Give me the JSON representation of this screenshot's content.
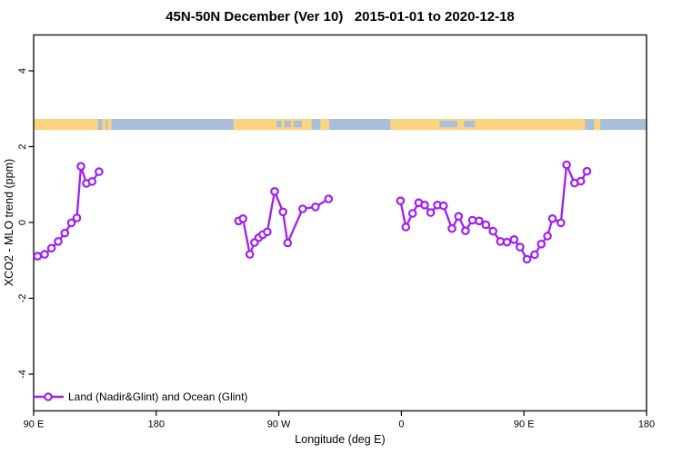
{
  "chart_data": {
    "type": "line",
    "title": "45N-50N December (Ver 10)   2015-01-01 to 2020-12-18",
    "xlabel": "Longitude (deg E)",
    "ylabel": "XCO2 - MLO trend (ppm)",
    "grid": false,
    "x_axis": {
      "note": "longitude axis wraps eastward from 90E across 450 degrees",
      "range": [
        90,
        540
      ],
      "ticks": [
        {
          "lon": 90,
          "label": "90 E"
        },
        {
          "lon": 180,
          "label": "180"
        },
        {
          "lon": 270,
          "label": "90 W"
        },
        {
          "lon": 360,
          "label": "0"
        },
        {
          "lon": 450,
          "label": "90 E"
        },
        {
          "lon": 540,
          "label": "180"
        }
      ]
    },
    "y_axis": {
      "range": [
        -5,
        5
      ],
      "ticks": [
        {
          "value": -4,
          "label": "-4"
        },
        {
          "value": -2,
          "label": "-2"
        },
        {
          "value": 0,
          "label": "0"
        },
        {
          "value": 2,
          "label": "2"
        },
        {
          "value": 4,
          "label": "4"
        }
      ]
    },
    "legend": {
      "position": "bottom-left",
      "entries": [
        {
          "label": "Land (Nadir&Glint) and Ocean (Glint)",
          "color": "#A020F0",
          "marker": "open-circle-on-line"
        }
      ]
    },
    "series": [
      {
        "name": "Land (Nadir&Glint) and Ocean (Glint)",
        "color": "#A020F0",
        "marker": "open-circle",
        "segments": [
          [
            [
              92.9,
              -0.89
            ],
            [
              98.0,
              -0.84
            ],
            [
              103.1,
              -0.68
            ],
            [
              108.0,
              -0.5
            ],
            [
              112.9,
              -0.28
            ],
            [
              117.7,
              -0.01
            ],
            [
              121.7,
              0.12
            ],
            [
              124.7,
              1.48
            ],
            [
              128.7,
              1.03
            ],
            [
              132.9,
              1.08
            ],
            [
              138.0,
              1.34
            ]
          ],
          [
            [
              240.5,
              0.04
            ],
            [
              243.7,
              0.1
            ],
            [
              248.7,
              -0.84
            ],
            [
              252.2,
              -0.53
            ],
            [
              255.3,
              -0.4
            ],
            [
              258.2,
              -0.32
            ],
            [
              261.5,
              -0.25
            ],
            [
              266.9,
              0.82
            ],
            [
              273.1,
              0.28
            ],
            [
              276.5,
              -0.54
            ],
            [
              287.5,
              0.36
            ],
            [
              296.9,
              0.41
            ],
            [
              306.5,
              0.62
            ]
          ],
          [
            [
              359.3,
              0.57
            ],
            [
              363.3,
              -0.12
            ],
            [
              368.2,
              0.24
            ],
            [
              372.7,
              0.52
            ],
            [
              377.1,
              0.46
            ],
            [
              381.5,
              0.26
            ],
            [
              386.5,
              0.46
            ],
            [
              390.9,
              0.44
            ],
            [
              397.1,
              -0.16
            ],
            [
              402.0,
              0.16
            ],
            [
              407.1,
              -0.22
            ],
            [
              412.2,
              0.06
            ],
            [
              417.1,
              0.04
            ],
            [
              422.0,
              -0.06
            ],
            [
              427.3,
              -0.23
            ],
            [
              432.7,
              -0.5
            ],
            [
              437.5,
              -0.52
            ],
            [
              442.7,
              -0.45
            ],
            [
              447.1,
              -0.65
            ],
            [
              452.2,
              -0.97
            ],
            [
              457.8,
              -0.85
            ],
            [
              462.7,
              -0.57
            ],
            [
              467.3,
              -0.36
            ],
            [
              470.9,
              0.1
            ],
            [
              477.1,
              -0.01
            ],
            [
              481.3,
              1.52
            ],
            [
              487.1,
              1.04
            ],
            [
              491.7,
              1.09
            ],
            [
              496.3,
              1.35
            ]
          ]
        ]
      }
    ],
    "map_strip": {
      "description": "45N-50N land/ocean band drawn across plot",
      "band_value_top": 2.73,
      "band_value_bottom": 2.44,
      "ocean_color": "#A9BEDB",
      "land_color": "#FAD47F",
      "ocean_range": [
        90,
        540
      ],
      "land_segments_deg": [
        [
          90,
          137.3
        ],
        [
          140.5,
          143.2
        ],
        [
          144.3,
          147.2
        ],
        [
          236.8,
          294.0
        ],
        [
          300.5,
          307.0
        ],
        [
          352.0,
          495.0
        ],
        [
          501.5,
          506.0
        ]
      ],
      "inland_water_deg": [
        [
          268.5,
          272.0
        ],
        [
          274.0,
          279.0
        ],
        [
          281.0,
          287.0
        ],
        [
          388.0,
          401.0
        ],
        [
          406.0,
          414.0
        ]
      ]
    },
    "frame_color": "#333333"
  }
}
